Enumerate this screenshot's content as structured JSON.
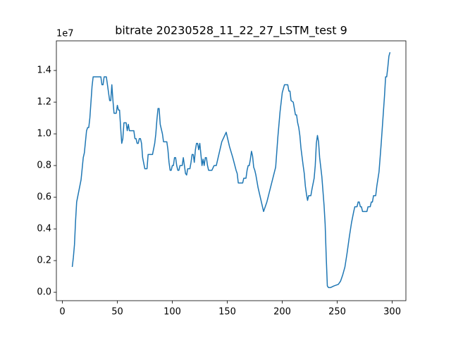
{
  "chart_data": {
    "type": "line",
    "title": "bitrate 20230528_11_22_27_LSTM_test 9",
    "offset_label": "1e7",
    "color": "#1f77b4",
    "x": [
      9,
      10,
      11,
      12,
      13,
      15,
      17,
      18,
      19,
      20,
      21,
      22,
      23,
      24,
      25,
      26,
      27,
      28,
      35,
      36,
      37,
      38,
      40,
      41,
      42,
      43,
      44,
      45,
      46,
      47,
      49,
      50,
      51,
      52,
      53,
      54,
      55,
      56,
      58,
      59,
      60,
      61,
      65,
      66,
      67,
      68,
      69,
      70,
      71,
      72,
      73,
      75,
      77,
      78,
      82,
      84,
      85,
      86,
      87,
      88,
      89,
      91,
      92,
      95,
      96,
      97,
      98,
      99,
      100,
      101,
      102,
      103,
      104,
      105,
      106,
      107,
      109,
      110,
      111,
      112,
      113,
      114,
      116,
      117,
      118,
      119,
      120,
      121,
      122,
      123,
      124,
      125,
      126,
      127,
      128,
      129,
      130,
      131,
      132,
      133,
      136,
      138,
      140,
      145,
      149,
      152,
      155,
      158,
      159,
      160,
      164,
      165,
      167,
      168,
      169,
      170,
      171,
      172,
      173,
      174,
      175,
      176,
      178,
      183,
      186,
      190,
      194,
      196,
      198,
      200,
      202,
      205,
      206,
      207,
      208,
      210,
      211,
      212,
      213,
      214,
      215,
      216,
      217,
      219,
      220,
      221,
      222,
      223,
      224,
      226,
      227,
      229,
      230,
      231,
      232,
      233,
      234,
      236,
      238,
      239,
      240,
      241,
      242,
      244,
      247,
      251,
      253,
      255,
      257,
      259,
      261,
      263,
      265,
      266,
      268,
      269,
      270,
      271,
      272,
      273,
      277,
      278,
      280,
      281,
      282,
      283,
      285,
      286,
      288,
      290,
      292,
      293,
      294,
      295,
      296,
      297,
      298
    ],
    "values": [
      0.16,
      0.22,
      0.3,
      0.45,
      0.57,
      0.64,
      0.71,
      0.78,
      0.85,
      0.88,
      0.95,
      1.02,
      1.04,
      1.04,
      1.1,
      1.2,
      1.3,
      1.36,
      1.36,
      1.31,
      1.31,
      1.36,
      1.36,
      1.31,
      1.26,
      1.21,
      1.21,
      1.31,
      1.21,
      1.13,
      1.13,
      1.18,
      1.15,
      1.15,
      1.04,
      0.94,
      0.97,
      1.07,
      1.07,
      1.02,
      1.06,
      1.02,
      1.02,
      0.97,
      0.97,
      0.94,
      0.94,
      0.97,
      0.97,
      0.94,
      0.85,
      0.78,
      0.78,
      0.87,
      0.87,
      0.94,
      1.0,
      1.09,
      1.16,
      1.16,
      1.06,
      1.0,
      0.95,
      0.95,
      0.9,
      0.82,
      0.77,
      0.77,
      0.8,
      0.8,
      0.85,
      0.85,
      0.8,
      0.77,
      0.77,
      0.8,
      0.8,
      0.85,
      0.8,
      0.75,
      0.74,
      0.78,
      0.78,
      0.82,
      0.87,
      0.87,
      0.82,
      0.9,
      0.94,
      0.94,
      0.9,
      0.94,
      0.87,
      0.8,
      0.84,
      0.8,
      0.85,
      0.85,
      0.8,
      0.77,
      0.77,
      0.8,
      0.8,
      0.95,
      1.01,
      0.92,
      0.85,
      0.77,
      0.75,
      0.69,
      0.69,
      0.72,
      0.72,
      0.77,
      0.8,
      0.8,
      0.84,
      0.89,
      0.86,
      0.79,
      0.77,
      0.74,
      0.66,
      0.51,
      0.57,
      0.68,
      0.79,
      0.98,
      1.14,
      1.26,
      1.31,
      1.31,
      1.27,
      1.27,
      1.21,
      1.2,
      1.16,
      1.12,
      1.12,
      1.07,
      1.04,
      0.99,
      0.91,
      0.8,
      0.75,
      0.67,
      0.62,
      0.58,
      0.61,
      0.61,
      0.65,
      0.72,
      0.8,
      0.94,
      0.99,
      0.95,
      0.85,
      0.73,
      0.55,
      0.43,
      0.22,
      0.04,
      0.03,
      0.03,
      0.04,
      0.05,
      0.07,
      0.11,
      0.16,
      0.25,
      0.35,
      0.44,
      0.51,
      0.54,
      0.54,
      0.57,
      0.57,
      0.54,
      0.54,
      0.51,
      0.51,
      0.54,
      0.54,
      0.57,
      0.57,
      0.61,
      0.61,
      0.67,
      0.76,
      0.94,
      1.14,
      1.24,
      1.36,
      1.36,
      1.42,
      1.49,
      1.515
    ],
    "xlim": [
      -5.45,
      312.45
    ],
    "xticks": [
      0,
      50,
      100,
      150,
      200,
      250,
      300
    ],
    "ylim": [
      -0.053,
      1.587
    ],
    "yticks": [
      {
        "value": 0,
        "label": "0.0"
      },
      {
        "value": 0.2,
        "label": "0.2"
      },
      {
        "value": 0.4,
        "label": "0.4"
      },
      {
        "value": 0.6,
        "label": "0.6"
      },
      {
        "value": 0.8,
        "label": "0.8"
      },
      {
        "value": 1.0,
        "label": "1.0"
      },
      {
        "value": 1.2,
        "label": "1.2"
      },
      {
        "value": 1.4,
        "label": "1.4"
      }
    ]
  }
}
